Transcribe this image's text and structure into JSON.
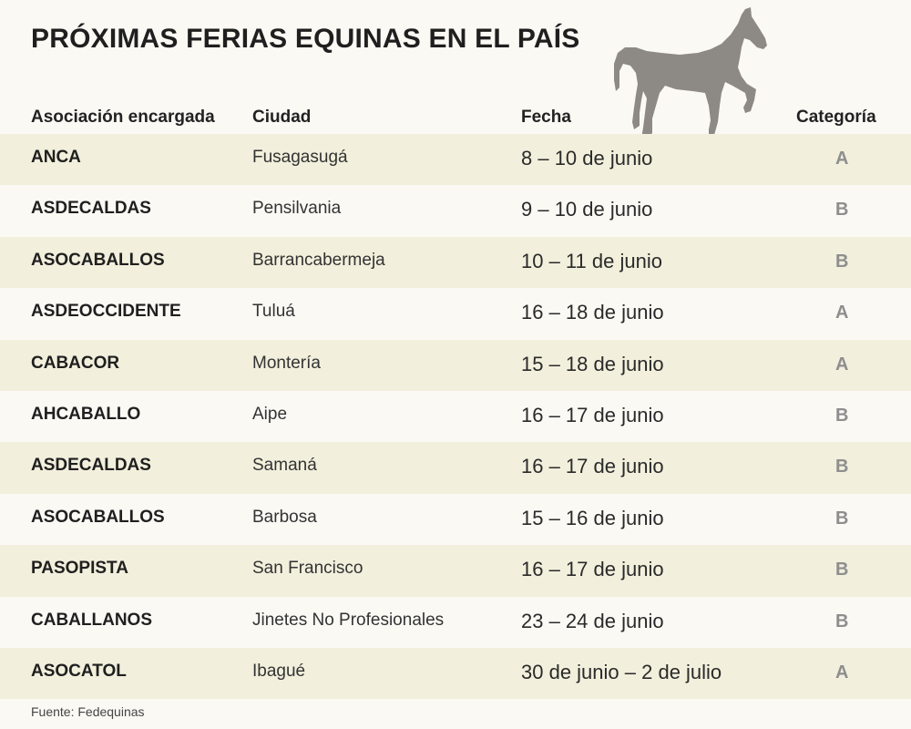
{
  "title": "PRÓXIMAS FERIAS EQUINAS EN EL PAÍS",
  "icons": {
    "horse": "horse-silhouette-icon",
    "horse_color": "#8d8a85"
  },
  "columns": [
    "Asociación encargada",
    "Ciudad",
    "Fecha",
    "Categoría"
  ],
  "rows": [
    {
      "assoc": "ANCA",
      "city": "Fusagasugá",
      "date": "8 – 10 de junio",
      "cat": "A"
    },
    {
      "assoc": "ASDECALDAS",
      "city": "Pensilvania",
      "date": "9 – 10 de junio",
      "cat": "B"
    },
    {
      "assoc": "ASOCABALLOS",
      "city": "Barrancabermeja",
      "date": "10 – 11 de junio",
      "cat": "B"
    },
    {
      "assoc": "ASDEOCCIDENTE",
      "city": "Tuluá",
      "date": "16 – 18 de junio",
      "cat": "A"
    },
    {
      "assoc": "CABACOR",
      "city": "Montería",
      "date": "15 – 18 de junio",
      "cat": "A"
    },
    {
      "assoc": "AHCABALLO",
      "city": "Aipe",
      "date": "16 – 17 de junio",
      "cat": "B"
    },
    {
      "assoc": "ASDECALDAS",
      "city": "Samaná",
      "date": "16 – 17 de junio",
      "cat": "B"
    },
    {
      "assoc": "ASOCABALLOS",
      "city": "Barbosa",
      "date": "15 – 16 de junio",
      "cat": "B"
    },
    {
      "assoc": "PASOPISTA",
      "city": "San Francisco",
      "date": "16 – 17 de junio",
      "cat": "B"
    },
    {
      "assoc": "CABALLANOS",
      "city": "Jinetes No Profesionales",
      "date": "23 – 24 de junio",
      "cat": "B"
    },
    {
      "assoc": "ASOCATOL",
      "city": "Ibagué",
      "date": "30 de junio – 2 de julio",
      "cat": "A"
    }
  ],
  "source": "Fuente: Fedequinas",
  "colors": {
    "background": "#fbf9f4",
    "row_band": "#f2efdc",
    "category_text": "#8e8e8e"
  }
}
